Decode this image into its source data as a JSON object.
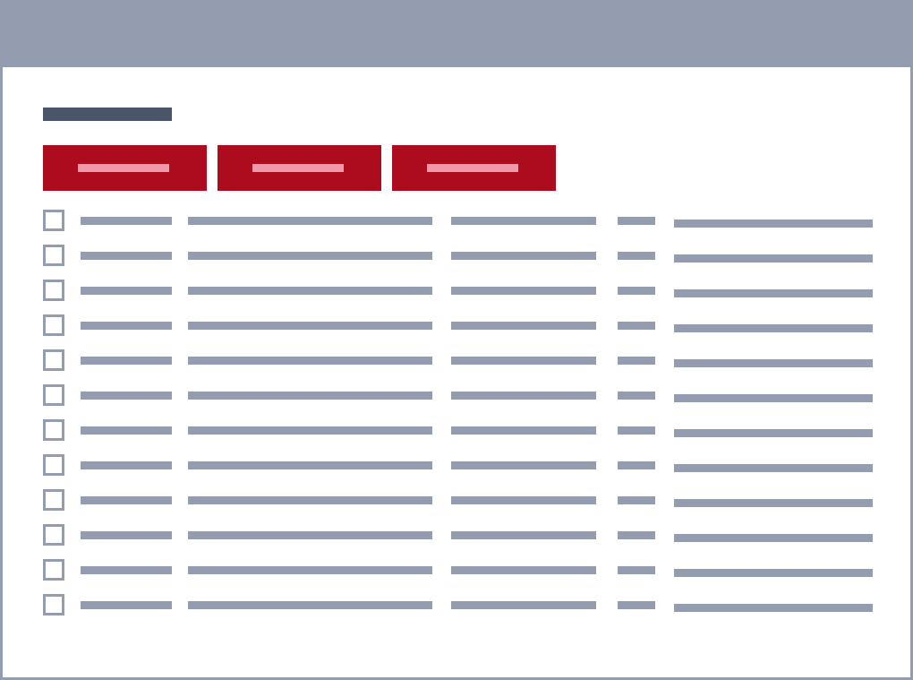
{
  "window": {
    "title": ""
  },
  "page": {
    "title": ""
  },
  "toolbar": {
    "buttons": [
      {
        "label": ""
      },
      {
        "label": ""
      },
      {
        "label": ""
      }
    ]
  },
  "table": {
    "rows": [
      {
        "checked": false,
        "cells": [
          "",
          "",
          "",
          "",
          ""
        ]
      },
      {
        "checked": false,
        "cells": [
          "",
          "",
          "",
          "",
          ""
        ]
      },
      {
        "checked": false,
        "cells": [
          "",
          "",
          "",
          "",
          ""
        ]
      },
      {
        "checked": false,
        "cells": [
          "",
          "",
          "",
          "",
          ""
        ]
      },
      {
        "checked": false,
        "cells": [
          "",
          "",
          "",
          "",
          ""
        ]
      },
      {
        "checked": false,
        "cells": [
          "",
          "",
          "",
          "",
          ""
        ]
      },
      {
        "checked": false,
        "cells": [
          "",
          "",
          "",
          "",
          ""
        ]
      },
      {
        "checked": false,
        "cells": [
          "",
          "",
          "",
          "",
          ""
        ]
      },
      {
        "checked": false,
        "cells": [
          "",
          "",
          "",
          "",
          ""
        ]
      },
      {
        "checked": false,
        "cells": [
          "",
          "",
          "",
          "",
          ""
        ]
      },
      {
        "checked": false,
        "cells": [
          "",
          "",
          "",
          "",
          ""
        ]
      },
      {
        "checked": false,
        "cells": [
          "",
          "",
          "",
          "",
          ""
        ]
      }
    ]
  },
  "colors": {
    "titlebar": "#939daf",
    "page_title_placeholder": "#4b5568",
    "button_background": "#ad0c1f",
    "button_label_placeholder": "#ef9aaa",
    "text_placeholder": "#939daf",
    "checkbox_border": "#939daf",
    "background": "#ffffff"
  }
}
